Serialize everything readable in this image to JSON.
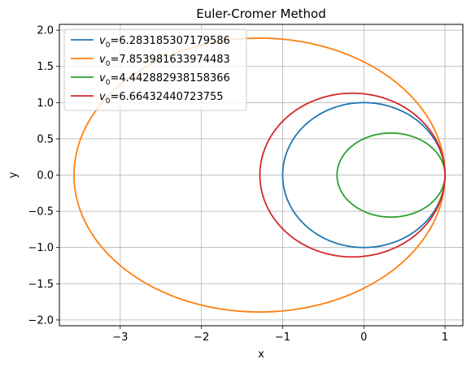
{
  "chart_data": {
    "type": "line",
    "title": "Euler-Cromer Method",
    "xlabel": "x",
    "ylabel": "y",
    "xlim": [
      -3.75,
      1.22
    ],
    "ylim": [
      -2.08,
      2.08
    ],
    "xticks": [
      -3,
      -2,
      -1,
      0,
      1
    ],
    "yticks": [
      -2.0,
      -1.5,
      -1.0,
      -0.5,
      0.0,
      0.5,
      1.0,
      1.5,
      2.0
    ],
    "xtick_labels": [
      "−3",
      "−2",
      "−1",
      "0",
      "1"
    ],
    "ytick_labels": [
      "−2.0",
      "−1.5",
      "−1.0",
      "−0.5",
      "0.0",
      "0.5",
      "1.0",
      "1.5",
      "2.0"
    ],
    "grid": true,
    "legend_position": "top-left",
    "series": [
      {
        "name": "6.283185307179586",
        "color": "#1f77b4",
        "x_min": -1.0,
        "x_max": 1.0,
        "y_amplitude": 1.0
      },
      {
        "name": "7.853981633974483",
        "color": "#ff7f0e",
        "x_min": -3.57,
        "x_max": 1.0,
        "y_amplitude": 1.89
      },
      {
        "name": "4.442882938158366",
        "color": "#2ca02c",
        "x_min": -0.33,
        "x_max": 1.0,
        "y_amplitude": 0.58
      },
      {
        "name": "6.66432440723755",
        "color": "#d62728",
        "x_min": -1.28,
        "x_max": 1.0,
        "y_amplitude": 1.13
      }
    ]
  }
}
